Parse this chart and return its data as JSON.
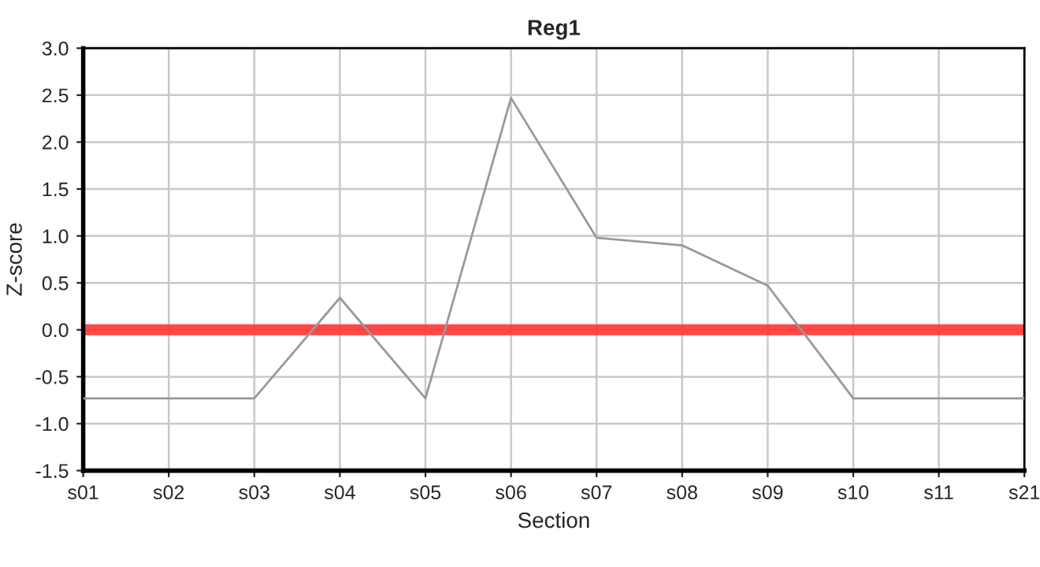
{
  "chart_data": {
    "type": "line",
    "title": "Reg1",
    "xlabel": "Section",
    "ylabel": "Z-score",
    "categories": [
      "s01",
      "s02",
      "s03",
      "s04",
      "s05",
      "s06",
      "s07",
      "s08",
      "s09",
      "s10",
      "s11",
      "s21"
    ],
    "series": [
      {
        "color": "#999999",
        "values": [
          -0.73,
          -0.73,
          -0.73,
          0.34,
          -0.73,
          2.47,
          0.98,
          0.9,
          0.47,
          -0.73,
          -0.73,
          -0.73
        ]
      }
    ],
    "ylim": [
      -1.5,
      3.0
    ],
    "yticks": [
      {
        "value": -1.5,
        "label": "-1.5"
      },
      {
        "value": -1.0,
        "label": "-1.0"
      },
      {
        "value": -0.5,
        "label": "-0.5"
      },
      {
        "value": 0.0,
        "label": "0.0"
      },
      {
        "value": 0.5,
        "label": "0.5"
      },
      {
        "value": 1.0,
        "label": "1.0"
      },
      {
        "value": 1.5,
        "label": "1.5"
      },
      {
        "value": 2.0,
        "label": "2.0"
      },
      {
        "value": 2.5,
        "label": "2.5"
      },
      {
        "value": 3.0,
        "label": "3.0"
      }
    ],
    "ref_lines": [
      {
        "axis": "y",
        "value": 0,
        "color": "#ff3333"
      }
    ],
    "grid": true,
    "marker": "none",
    "line_style": "solid",
    "legend": false
  }
}
